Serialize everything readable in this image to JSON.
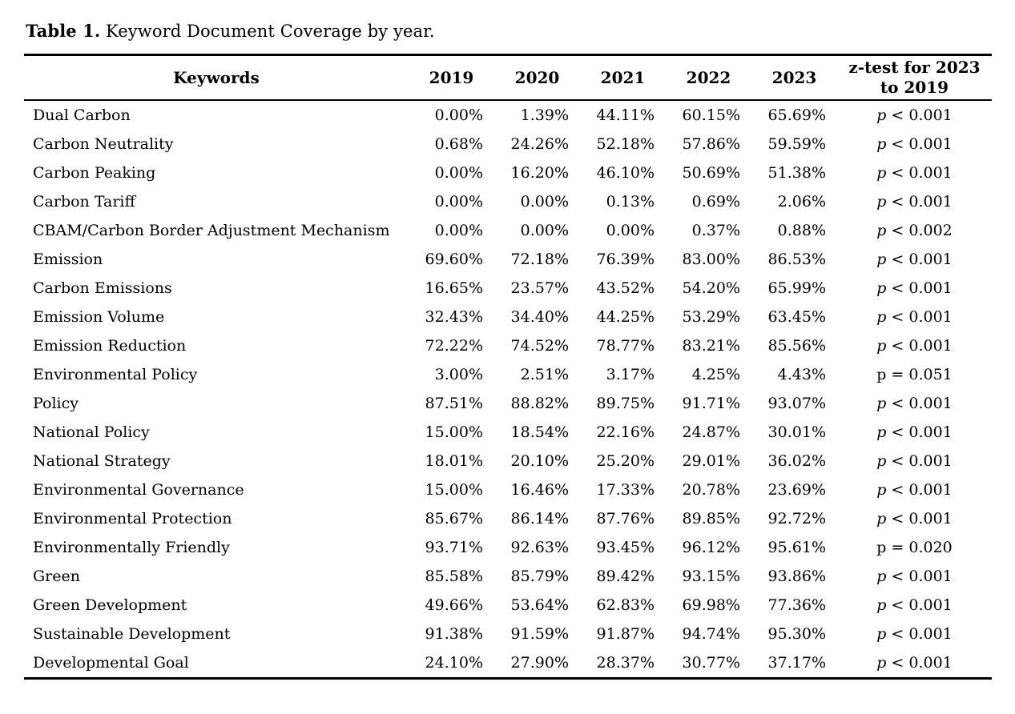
{
  "caption": {
    "label": "Table 1.",
    "text": " Keyword Document Coverage by year."
  },
  "table": {
    "columns": [
      "Keywords",
      "2019",
      "2020",
      "2021",
      "2022",
      "2023",
      "z-test for 2023 to 2019"
    ],
    "rows": [
      {
        "keyword": "Dual Carbon",
        "values": [
          "0.00%",
          "1.39%",
          "44.11%",
          "60.15%",
          "65.69%"
        ],
        "z": "p < 0.001",
        "p_italic": true
      },
      {
        "keyword": "Carbon Neutrality",
        "values": [
          "0.68%",
          "24.26%",
          "52.18%",
          "57.86%",
          "59.59%"
        ],
        "z": "p < 0.001",
        "p_italic": true
      },
      {
        "keyword": "Carbon Peaking",
        "values": [
          "0.00%",
          "16.20%",
          "46.10%",
          "50.69%",
          "51.38%"
        ],
        "z": "p < 0.001",
        "p_italic": true
      },
      {
        "keyword": "Carbon Tariff",
        "values": [
          "0.00%",
          "0.00%",
          "0.13%",
          "0.69%",
          "2.06%"
        ],
        "z": "p < 0.001",
        "p_italic": true
      },
      {
        "keyword": "CBAM/Carbon Border Adjustment Mechanism",
        "values": [
          "0.00%",
          "0.00%",
          "0.00%",
          "0.37%",
          "0.88%"
        ],
        "z": "p < 0.002",
        "p_italic": true
      },
      {
        "keyword": "Emission",
        "values": [
          "69.60%",
          "72.18%",
          "76.39%",
          "83.00%",
          "86.53%"
        ],
        "z": "p < 0.001",
        "p_italic": true
      },
      {
        "keyword": "Carbon Emissions",
        "values": [
          "16.65%",
          "23.57%",
          "43.52%",
          "54.20%",
          "65.99%"
        ],
        "z": "p < 0.001",
        "p_italic": true
      },
      {
        "keyword": "Emission Volume",
        "values": [
          "32.43%",
          "34.40%",
          "44.25%",
          "53.29%",
          "63.45%"
        ],
        "z": "p < 0.001",
        "p_italic": true
      },
      {
        "keyword": "Emission Reduction",
        "values": [
          "72.22%",
          "74.52%",
          "78.77%",
          "83.21%",
          "85.56%"
        ],
        "z": "p < 0.001",
        "p_italic": true
      },
      {
        "keyword": "Environmental Policy",
        "values": [
          "3.00%",
          "2.51%",
          "3.17%",
          "4.25%",
          "4.43%"
        ],
        "z": "p = 0.051",
        "p_italic": false
      },
      {
        "keyword": "Policy",
        "values": [
          "87.51%",
          "88.82%",
          "89.75%",
          "91.71%",
          "93.07%"
        ],
        "z": "p < 0.001",
        "p_italic": true
      },
      {
        "keyword": "National Policy",
        "values": [
          "15.00%",
          "18.54%",
          "22.16%",
          "24.87%",
          "30.01%"
        ],
        "z": "p < 0.001",
        "p_italic": true
      },
      {
        "keyword": "National Strategy",
        "values": [
          "18.01%",
          "20.10%",
          "25.20%",
          "29.01%",
          "36.02%"
        ],
        "z": "p < 0.001",
        "p_italic": true
      },
      {
        "keyword": "Environmental Governance",
        "values": [
          "15.00%",
          "16.46%",
          "17.33%",
          "20.78%",
          "23.69%"
        ],
        "z": "p < 0.001",
        "p_italic": true
      },
      {
        "keyword": "Environmental Protection",
        "values": [
          "85.67%",
          "86.14%",
          "87.76%",
          "89.85%",
          "92.72%"
        ],
        "z": "p < 0.001",
        "p_italic": true
      },
      {
        "keyword": "Environmentally Friendly",
        "values": [
          "93.71%",
          "92.63%",
          "93.45%",
          "96.12%",
          "95.61%"
        ],
        "z": "p = 0.020",
        "p_italic": false
      },
      {
        "keyword": "Green",
        "values": [
          "85.58%",
          "85.79%",
          "89.42%",
          "93.15%",
          "93.86%"
        ],
        "z": "p < 0.001",
        "p_italic": true
      },
      {
        "keyword": "Green Development",
        "values": [
          "49.66%",
          "53.64%",
          "62.83%",
          "69.98%",
          "77.36%"
        ],
        "z": "p < 0.001",
        "p_italic": true
      },
      {
        "keyword": "Sustainable Development",
        "values": [
          "91.38%",
          "91.59%",
          "91.87%",
          "94.74%",
          "95.30%"
        ],
        "z": "p < 0.001",
        "p_italic": true
      },
      {
        "keyword": "Developmental Goal",
        "values": [
          "24.10%",
          "27.90%",
          "28.37%",
          "30.77%",
          "37.17%"
        ],
        "z": "p < 0.001",
        "p_italic": true
      }
    ]
  }
}
